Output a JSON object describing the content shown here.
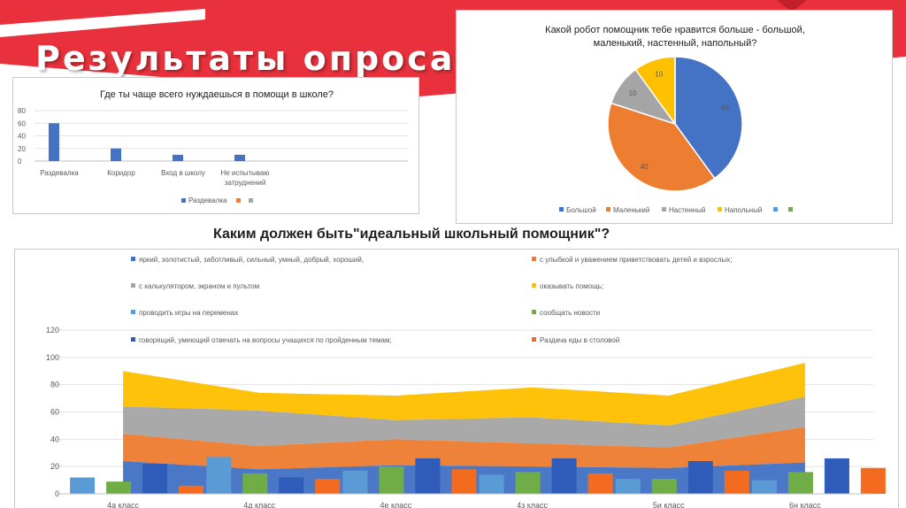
{
  "slide": {
    "title": "Результаты опроса:",
    "colors": {
      "red": "#E8313C",
      "white": "#FFFFFF",
      "dark": "#202020"
    }
  },
  "chart_data": [
    {
      "type": "bar",
      "title": "Где  ты чаще всего нуждаешься в помощи в школе?",
      "categories": [
        "Раздевалка",
        "Коридор",
        "Вход в школу",
        "Не испытываю затруднений"
      ],
      "series": [
        {
          "name": "Раздевалка",
          "values": [
            60,
            20,
            10,
            10
          ],
          "color": "#4472C4"
        },
        {
          "name": "",
          "values": [
            0,
            0,
            0,
            0
          ],
          "color": "#ED7D31"
        },
        {
          "name": "",
          "values": [
            0,
            0,
            0,
            0
          ],
          "color": "#A5A5A5"
        }
      ],
      "ylim": [
        0,
        80
      ],
      "yticks": [
        0,
        20,
        40,
        60,
        80
      ],
      "legend": "bottom"
    },
    {
      "type": "pie",
      "title": "Какой робот помощник тебе нравится больше - большой, маленький, настенный, напольный?",
      "slices": [
        {
          "label": "Большой",
          "value": 40,
          "color": "#4472C4"
        },
        {
          "label": "Маленький",
          "value": 40,
          "color": "#ED7D31"
        },
        {
          "label": "Настенный",
          "value": 10,
          "color": "#A5A5A5"
        },
        {
          "label": "Напольный",
          "value": 10,
          "color": "#FFC000"
        }
      ],
      "extra_legend": [
        {
          "label": "",
          "color": "#5B9BD5"
        },
        {
          "label": "",
          "color": "#70AD47"
        }
      ],
      "legend": "bottom"
    },
    {
      "type": "area",
      "title": "Каким должен быть\"идеальный школьный помощник\"?",
      "categories": [
        "4а класс",
        "4д класс",
        "4е класс",
        "4з класс",
        "5и класс",
        "6н класс"
      ],
      "ylim": [
        0,
        120
      ],
      "yticks": [
        0,
        20,
        40,
        60,
        80,
        100,
        120
      ],
      "legend": "top",
      "series": [
        {
          "name": "яркий, золотистый, заботливый, сильный, умный, добрый, хороший,",
          "kind": "area",
          "values": [
            24,
            18,
            21,
            20,
            19,
            23
          ],
          "color": "#4472C4"
        },
        {
          "name": "с улыбкой и уважением приветствовать детей и взрослых;",
          "kind": "area",
          "values": [
            20,
            17,
            19,
            17,
            15,
            26
          ],
          "color": "#ED7D31"
        },
        {
          "name": "с калькулятором, экраном и пультом",
          "kind": "area",
          "values": [
            20,
            26,
            14,
            19,
            16,
            22
          ],
          "color": "#A5A5A5"
        },
        {
          "name": "оказывать помощь;",
          "kind": "area",
          "values": [
            26,
            13,
            18,
            22,
            22,
            25
          ],
          "color": "#FFC000"
        },
        {
          "name": "проводить игры на переменах",
          "kind": "bar",
          "values": [
            12,
            27,
            17,
            14,
            11,
            10
          ],
          "color": "#5B9BD5"
        },
        {
          "name": "сообщать новости",
          "kind": "bar",
          "values": [
            9,
            15,
            20,
            16,
            11,
            16
          ],
          "color": "#70AD47"
        },
        {
          "name": "говорящий, умеющий отвечать на вопросы учащихся по пройденным темам;",
          "kind": "bar",
          "values": [
            22,
            12,
            26,
            26,
            24,
            26
          ],
          "color": "#2E5CB8"
        },
        {
          "name": "Раздача еды в столовой",
          "kind": "bar",
          "values": [
            6,
            11,
            18,
            15,
            17,
            19
          ],
          "color": "#F26B1F"
        }
      ]
    }
  ]
}
